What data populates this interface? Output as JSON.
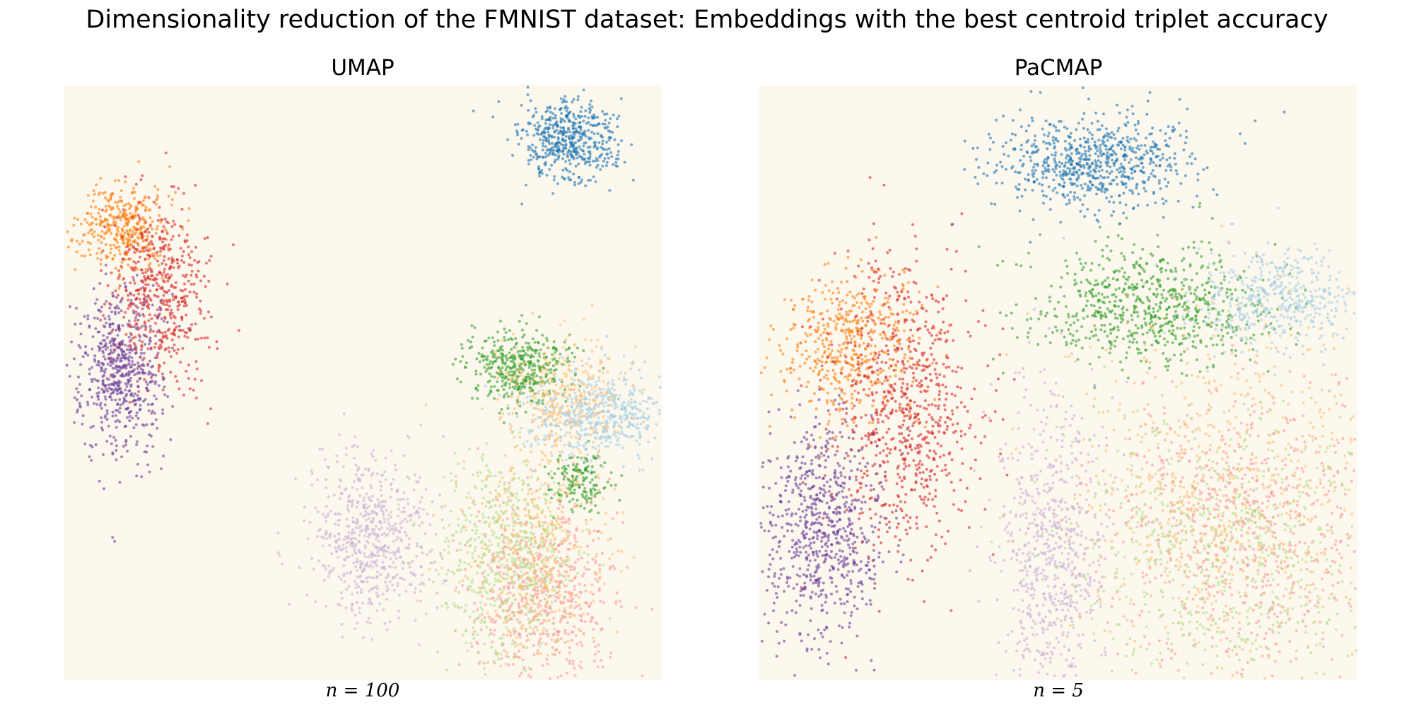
{
  "chart_data": [
    {
      "type": "scatter",
      "suptitle": "Dimensionality reduction of the FMNIST dataset: Embeddings with the best centroid triplet accuracy",
      "title": "UMAP",
      "xlabel": "n = 100",
      "grid": false,
      "axes_visible": false,
      "legend": "none",
      "xlim": [
        0,
        100
      ],
      "ylim": [
        0,
        100
      ],
      "clusters": [
        {
          "color": "#1f77b4",
          "cx": 84.5,
          "cy": 90.5,
          "sx": 4.0,
          "sy": 3.5,
          "n": 520
        },
        {
          "color": "#ff7f0e",
          "cx": 10.0,
          "cy": 76.0,
          "sx": 3.5,
          "sy": 3.5,
          "n": 380
        },
        {
          "color": "#d62728",
          "cx": 16.0,
          "cy": 66.0,
          "sx": 4.0,
          "sy": 8.0,
          "n": 520
        },
        {
          "color": "#6a3d9a",
          "cx": 9.5,
          "cy": 52.0,
          "sx": 3.5,
          "sy": 7.0,
          "n": 600
        },
        {
          "color": "#33a02c",
          "cx": 76.5,
          "cy": 52.5,
          "sx": 4.5,
          "sy": 3.0,
          "n": 420
        },
        {
          "color": "#33a02c",
          "cx": 86.0,
          "cy": 33.5,
          "sx": 2.5,
          "sy": 2.5,
          "n": 160
        },
        {
          "color": "#a6cee3",
          "cx": 89.0,
          "cy": 44.5,
          "sx": 6.0,
          "sy": 3.5,
          "n": 560
        },
        {
          "color": "#fdbf6f",
          "cx": 84.0,
          "cy": 48.0,
          "sx": 5.0,
          "sy": 5.0,
          "n": 300
        },
        {
          "color": "#cab2d6",
          "cx": 51.5,
          "cy": 24.0,
          "sx": 5.0,
          "sy": 7.0,
          "n": 620
        },
        {
          "color": "#fb9a99",
          "cx": 80.0,
          "cy": 15.0,
          "sx": 6.0,
          "sy": 8.0,
          "n": 620
        },
        {
          "color": "#b2df8a",
          "cx": 74.0,
          "cy": 21.0,
          "sx": 6.0,
          "sy": 9.0,
          "n": 620
        },
        {
          "color": "#fdbf6f",
          "cx": 79.0,
          "cy": 22.0,
          "sx": 6.0,
          "sy": 9.0,
          "n": 380
        }
      ]
    },
    {
      "type": "scatter",
      "title": "PaCMAP",
      "xlabel": "n = 5",
      "grid": false,
      "axes_visible": false,
      "legend": "none",
      "xlim": [
        0,
        100
      ],
      "ylim": [
        0,
        100
      ],
      "clusters": [
        {
          "color": "#1f77b4",
          "cx": 55.0,
          "cy": 87.0,
          "sx": 8.5,
          "sy": 4.0,
          "n": 720
        },
        {
          "color": "#ff7f0e",
          "cx": 15.0,
          "cy": 56.0,
          "sx": 6.0,
          "sy": 6.0,
          "n": 520
        },
        {
          "color": "#d62728",
          "cx": 24.0,
          "cy": 46.0,
          "sx": 6.0,
          "sy": 12.0,
          "n": 760
        },
        {
          "color": "#6a3d9a",
          "cx": 10.5,
          "cy": 25.0,
          "sx": 5.0,
          "sy": 9.0,
          "n": 720
        },
        {
          "color": "#33a02c",
          "cx": 65.0,
          "cy": 63.0,
          "sx": 10.0,
          "sy": 5.0,
          "n": 720
        },
        {
          "color": "#a6cee3",
          "cx": 86.5,
          "cy": 64.0,
          "sx": 7.0,
          "sy": 4.0,
          "n": 480
        },
        {
          "color": "#fdbf6f",
          "cx": 77.0,
          "cy": 33.0,
          "sx": 13.0,
          "sy": 14.0,
          "n": 620
        },
        {
          "color": "#cab2d6",
          "cx": 49.0,
          "cy": 22.0,
          "sx": 4.5,
          "sy": 14.0,
          "n": 700
        },
        {
          "color": "#fb9a99",
          "cx": 82.0,
          "cy": 25.0,
          "sx": 12.0,
          "sy": 12.0,
          "n": 760
        },
        {
          "color": "#b2df8a",
          "cx": 78.0,
          "cy": 22.0,
          "sx": 13.0,
          "sy": 13.0,
          "n": 720
        }
      ]
    }
  ]
}
